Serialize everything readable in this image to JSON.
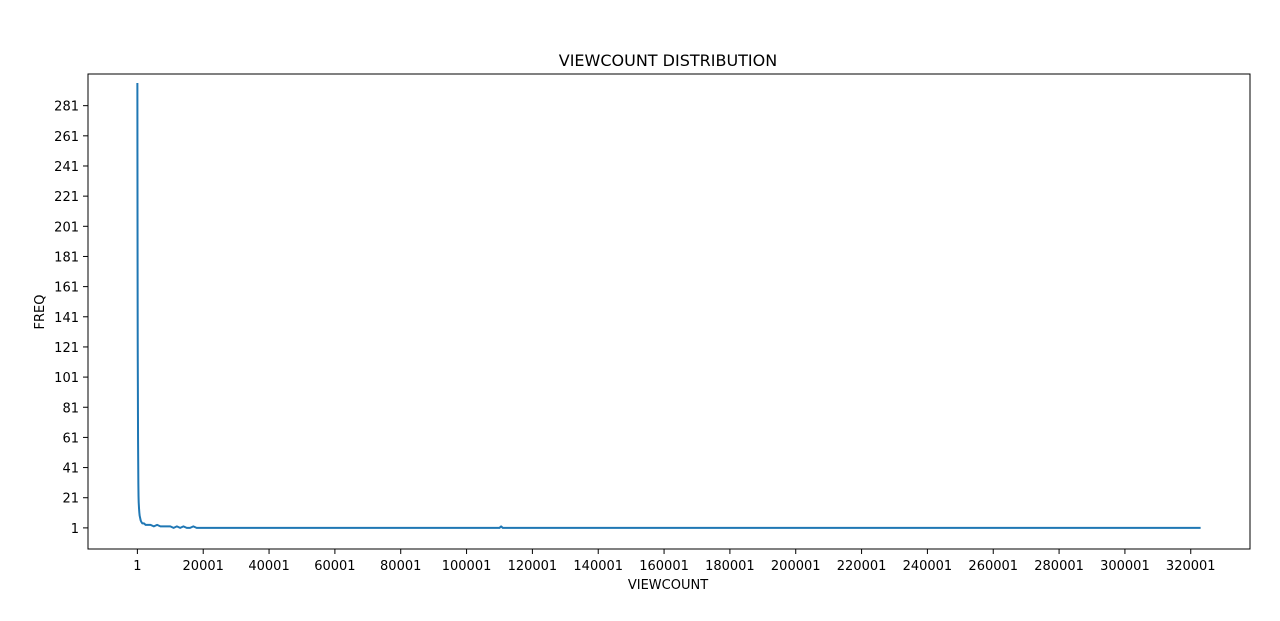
{
  "chart_data": {
    "type": "line",
    "title": "VIEWCOUNT DISTRIBUTION",
    "xlabel": "VIEWCOUNT",
    "ylabel": "FREQ",
    "xlim": [
      -15000,
      338000
    ],
    "ylim": [
      -13,
      302
    ],
    "grid": false,
    "legend": "none",
    "xticks": [
      1,
      20001,
      40001,
      60001,
      80001,
      100001,
      120001,
      140001,
      160001,
      180001,
      200001,
      220001,
      240001,
      260001,
      280001,
      300001,
      320001
    ],
    "xtick_labels": [
      "1",
      "20001",
      "40001",
      "60001",
      "80001",
      "100001",
      "120001",
      "140001",
      "160001",
      "180001",
      "200001",
      "220001",
      "240001",
      "260001",
      "280001",
      "300001",
      "320001"
    ],
    "yticks": [
      1,
      21,
      41,
      61,
      81,
      101,
      121,
      141,
      161,
      181,
      201,
      221,
      241,
      261,
      281
    ],
    "ytick_labels": [
      "1",
      "21",
      "41",
      "61",
      "81",
      "101",
      "121",
      "141",
      "161",
      "181",
      "201",
      "221",
      "241",
      "261",
      "281"
    ],
    "series": [
      {
        "color": "#1f77b4",
        "x": [
          1,
          20,
          40,
          60,
          80,
          100,
          120,
          150,
          180,
          200,
          250,
          300,
          350,
          400,
          500,
          600,
          700,
          800,
          1000,
          1200,
          1500,
          2000,
          2500,
          3000,
          4000,
          5000,
          6000,
          7000,
          8000,
          9000,
          10000,
          11000,
          12000,
          13000,
          14000,
          15000,
          16000,
          17000,
          18000,
          19000,
          20000,
          22000,
          25000,
          30000,
          40000,
          60000,
          80000,
          100000,
          110000,
          110500,
          111000,
          120000,
          160000,
          200000,
          240000,
          280000,
          320000,
          323000
        ],
        "y": [
          296,
          250,
          210,
          180,
          150,
          125,
          112,
          95,
          75,
          60,
          45,
          30,
          22,
          18,
          14,
          11,
          9,
          8,
          6,
          5,
          4,
          4,
          3,
          3,
          3,
          2,
          3,
          2,
          2,
          2,
          2,
          1,
          2,
          1,
          2,
          1,
          1,
          2,
          1,
          1,
          1,
          1,
          1,
          1,
          1,
          1,
          1,
          1,
          1,
          2,
          1,
          1,
          1,
          1,
          1,
          1,
          1,
          1
        ]
      }
    ]
  }
}
